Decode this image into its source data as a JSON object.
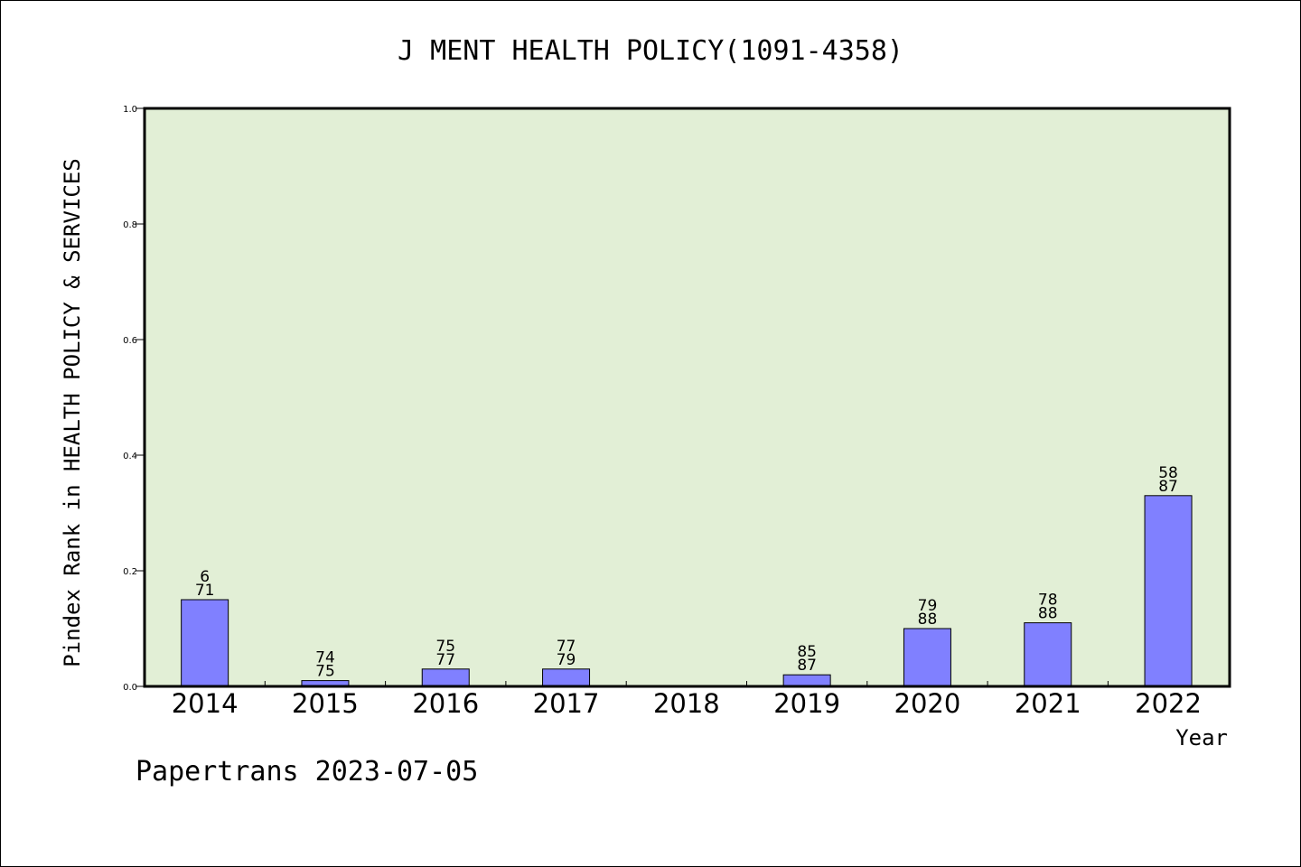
{
  "chart_data": {
    "type": "bar",
    "title": "J MENT HEALTH POLICY(1091-4358)",
    "xlabel": "Year",
    "ylabel": "Pindex Rank in HEALTH POLICY & SERVICES",
    "ylim": [
      0,
      1.0
    ],
    "yticks": [
      "0.0",
      "0.2",
      "0.4",
      "0.6",
      "0.8",
      "1.0"
    ],
    "categories": [
      "2014",
      "2015",
      "2016",
      "2017",
      "2018",
      "2019",
      "2020",
      "2021",
      "2022"
    ],
    "values": [
      0.15,
      0.01,
      0.03,
      0.03,
      null,
      0.02,
      0.1,
      0.11,
      0.33
    ],
    "labels_top": [
      "6",
      "74",
      "75",
      "77",
      "",
      "85",
      "79",
      "78",
      "58"
    ],
    "labels_bottom": [
      "71",
      "75",
      "77",
      "79",
      "",
      "87",
      "88",
      "88",
      "87"
    ],
    "grid": false,
    "colors": {
      "plot_background": "#e2efd6",
      "bar_fill": "#8080ff",
      "bar_stroke": "#000000"
    }
  },
  "footer": "Papertrans 2023-07-05"
}
